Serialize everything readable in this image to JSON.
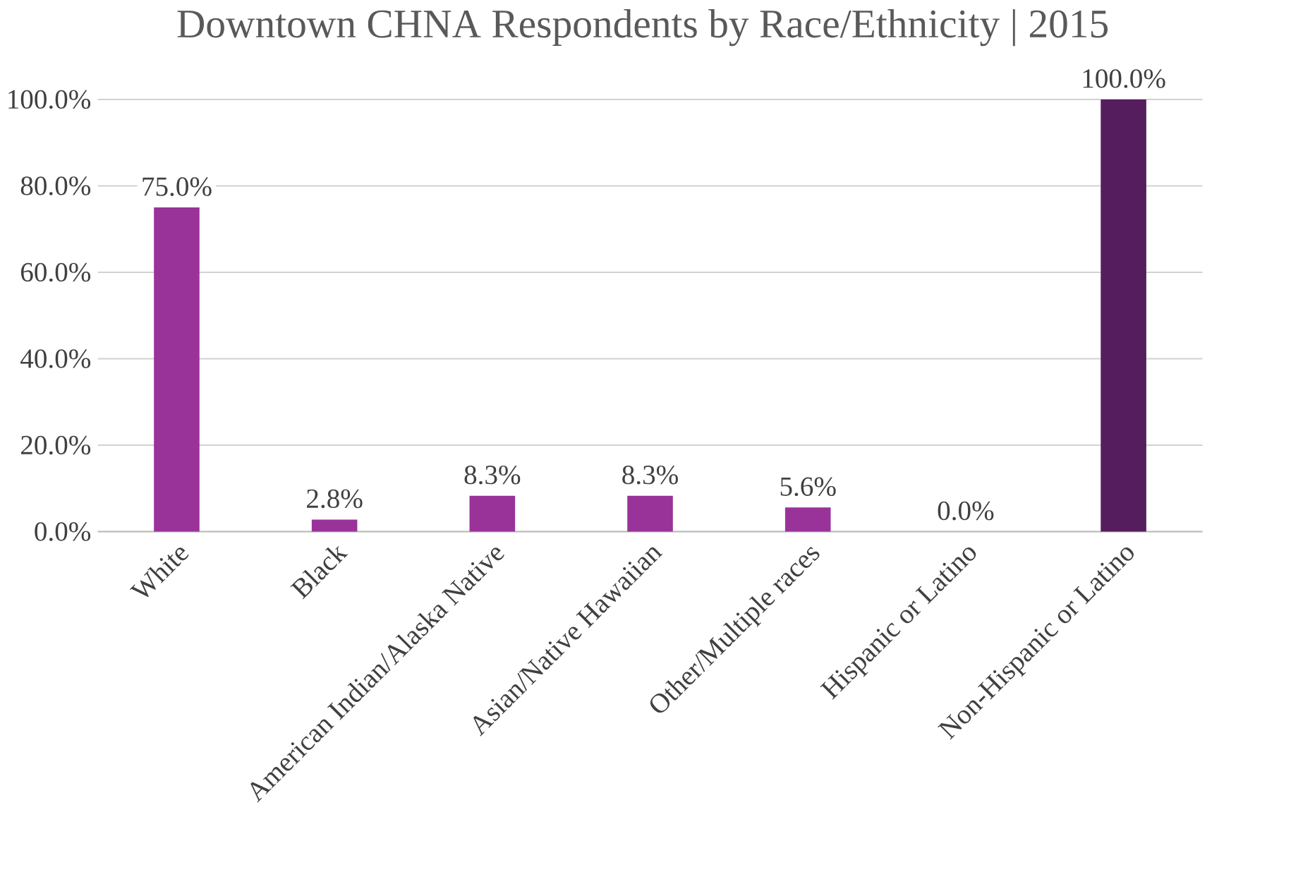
{
  "chart_data": {
    "type": "bar",
    "title": "Downtown CHNA Respondents by Race/Ethnicity | 2015",
    "categories": [
      "White",
      "Black",
      "American Indian/Alaska Native",
      "Asian/Native Hawaiian",
      "Other/Multiple races",
      "Hispanic or Latino",
      "Non-Hispanic or Latino"
    ],
    "values": [
      75.0,
      2.8,
      8.3,
      8.3,
      5.6,
      0.0,
      100.0
    ],
    "value_labels": [
      "75.0%",
      "2.8%",
      "8.3%",
      "8.3%",
      "5.6%",
      "0.0%",
      "100.0%"
    ],
    "colors": [
      "#993399",
      "#993399",
      "#993399",
      "#993399",
      "#993399",
      "#993399",
      "#561d5e"
    ],
    "ylim": [
      0,
      100
    ],
    "yticks": [
      {
        "value": 0,
        "label": "0.0%"
      },
      {
        "value": 20,
        "label": "20.0%"
      },
      {
        "value": 40,
        "label": "40.0%"
      },
      {
        "value": 60,
        "label": "60.0%"
      },
      {
        "value": 80,
        "label": "80.0%"
      },
      {
        "value": 100,
        "label": "100.0%"
      }
    ],
    "grid": "y"
  }
}
